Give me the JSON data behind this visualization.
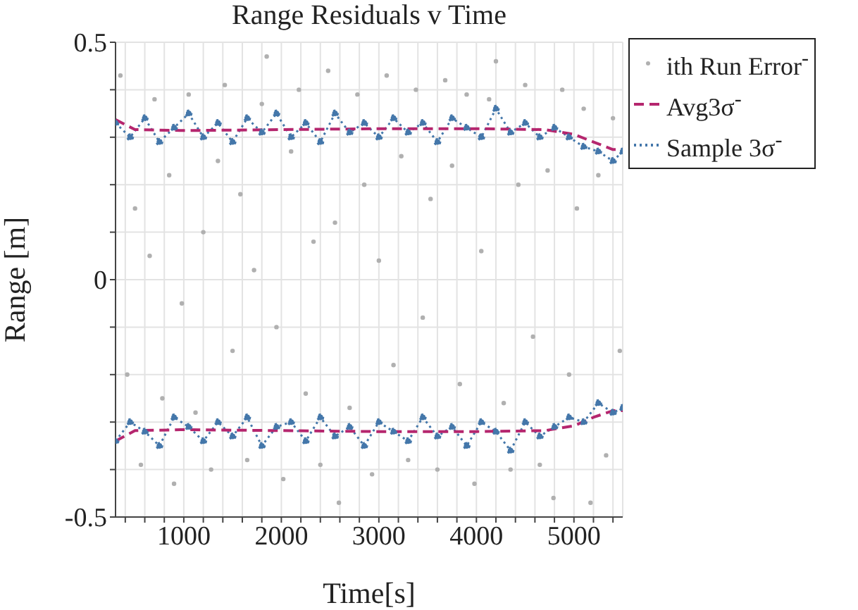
{
  "chart_data": {
    "type": "scatter",
    "title": "Range Residuals v Time",
    "xlabel": "Time[s]",
    "ylabel": "Range [m]",
    "xlim": [
      300,
      5500
    ],
    "ylim": [
      -0.5,
      0.5
    ],
    "xticks": [
      {
        "value": 400,
        "label": null
      },
      {
        "value": 600,
        "label": null
      },
      {
        "value": 800,
        "label": null
      },
      1000,
      {
        "value": 1200,
        "label": null
      },
      {
        "value": 1400,
        "label": null
      },
      {
        "value": 1600,
        "label": null
      },
      {
        "value": 1800,
        "label": null
      },
      2000,
      {
        "value": 2200,
        "label": null
      },
      {
        "value": 2400,
        "label": null
      },
      {
        "value": 2600,
        "label": null
      },
      {
        "value": 2800,
        "label": null
      },
      3000,
      {
        "value": 3200,
        "label": null
      },
      {
        "value": 3400,
        "label": null
      },
      {
        "value": 3600,
        "label": null
      },
      {
        "value": 3800,
        "label": null
      },
      4000,
      {
        "value": 4200,
        "label": null
      },
      {
        "value": 4400,
        "label": null
      },
      {
        "value": 4600,
        "label": null
      },
      {
        "value": 4800,
        "label": null
      },
      5000,
      {
        "value": 5200,
        "label": null
      },
      {
        "value": 5400,
        "label": null
      }
    ],
    "yticks": [
      -0.5,
      {
        "value": -0.4,
        "label": null
      },
      {
        "value": -0.3,
        "label": null
      },
      {
        "value": -0.2,
        "label": null
      },
      {
        "value": -0.1,
        "label": null
      },
      0,
      {
        "value": 0.1,
        "label": null
      },
      {
        "value": 0.2,
        "label": null
      },
      {
        "value": 0.3,
        "label": null
      },
      {
        "value": 0.4,
        "label": null
      },
      0.5
    ],
    "grid": true,
    "legend": "top right",
    "series": [
      {
        "name": "ith Run Error$^{-}$",
        "color": "#b0b0b0",
        "marker": "circle",
        "x": [
          350,
          420,
          500,
          560,
          650,
          700,
          780,
          850,
          900,
          980,
          1050,
          1120,
          1200,
          1280,
          1350,
          1420,
          1500,
          1580,
          1650,
          1720,
          1800,
          1850,
          1950,
          2020,
          2100,
          2180,
          2250,
          2330,
          2400,
          2480,
          2550,
          2590,
          2700,
          2780,
          2850,
          2930,
          3000,
          3080,
          3150,
          3230,
          3300,
          3380,
          3450,
          3530,
          3600,
          3680,
          3750,
          3830,
          3900,
          3980,
          4050,
          4130,
          4200,
          4280,
          4350,
          4430,
          4500,
          4580,
          4650,
          4730,
          4790,
          4880,
          4950,
          5030,
          5100,
          5170,
          5250,
          5330,
          5400,
          5470
        ],
        "values": [
          0.43,
          -0.2,
          0.15,
          -0.39,
          0.05,
          0.38,
          -0.25,
          0.22,
          -0.43,
          -0.05,
          0.39,
          -0.28,
          0.1,
          -0.4,
          0.25,
          0.41,
          -0.15,
          0.18,
          -0.38,
          0.02,
          0.37,
          0.47,
          -0.1,
          -0.42,
          0.27,
          0.4,
          -0.24,
          0.08,
          -0.39,
          0.44,
          0.12,
          -0.47,
          -0.27,
          0.39,
          0.2,
          -0.41,
          0.04,
          0.43,
          -0.18,
          0.26,
          -0.38,
          0.4,
          -0.08,
          0.17,
          -0.4,
          0.42,
          0.24,
          -0.22,
          0.39,
          -0.43,
          0.06,
          0.38,
          0.46,
          -0.26,
          -0.4,
          0.2,
          0.41,
          -0.12,
          -0.39,
          0.23,
          -0.46,
          0.4,
          -0.2,
          0.15,
          0.36,
          -0.47,
          0.22,
          -0.37,
          0.34,
          -0.15
        ]
      },
      {
        "type": "line",
        "name": "Avg3σ$^{-}$",
        "color": "#b5266e",
        "marker": "none",
        "line_style": "dashed",
        "x": [
          300,
          500,
          1000,
          2000,
          3000,
          4000,
          4700,
          5000,
          5200,
          5400,
          5500
        ],
        "values": [
          0.337,
          0.316,
          0.314,
          0.316,
          0.318,
          0.318,
          0.316,
          0.306,
          0.29,
          0.274,
          0.274
        ]
      },
      {
        "type": "line",
        "color": "#b5266e",
        "marker": "none",
        "line_style": "dashed",
        "x": [
          300,
          500,
          1000,
          2000,
          3000,
          4000,
          4700,
          5000,
          5200,
          5400,
          5500
        ],
        "values": [
          -0.34,
          -0.318,
          -0.316,
          -0.318,
          -0.32,
          -0.32,
          -0.318,
          -0.308,
          -0.29,
          -0.276,
          -0.276
        ]
      },
      {
        "type": "line",
        "name": "Sample 3σ$^{-}$",
        "color": "#4477aa",
        "marker": "circle",
        "line_style": "dotted",
        "x": [
          300,
          450,
          600,
          750,
          900,
          1050,
          1200,
          1350,
          1500,
          1650,
          1800,
          1950,
          2100,
          2250,
          2400,
          2550,
          2700,
          2850,
          3000,
          3150,
          3300,
          3450,
          3600,
          3750,
          3900,
          4050,
          4200,
          4350,
          4500,
          4650,
          4800,
          4950,
          5100,
          5250,
          5400,
          5500
        ],
        "values": [
          0.33,
          0.3,
          0.34,
          0.29,
          0.32,
          0.35,
          0.3,
          0.33,
          0.29,
          0.34,
          0.31,
          0.35,
          0.3,
          0.33,
          0.29,
          0.35,
          0.31,
          0.33,
          0.3,
          0.34,
          0.31,
          0.33,
          0.29,
          0.34,
          0.32,
          0.3,
          0.36,
          0.31,
          0.33,
          0.3,
          0.32,
          0.3,
          0.28,
          0.27,
          0.25,
          0.27
        ]
      },
      {
        "type": "line",
        "color": "#4477aa",
        "marker": "circle",
        "line_style": "dotted",
        "x": [
          300,
          450,
          600,
          750,
          900,
          1050,
          1200,
          1350,
          1500,
          1650,
          1800,
          1950,
          2100,
          2250,
          2400,
          2550,
          2700,
          2850,
          3000,
          3150,
          3300,
          3450,
          3600,
          3750,
          3900,
          4050,
          4200,
          4350,
          4500,
          4650,
          4800,
          4950,
          5100,
          5250,
          5400,
          5500
        ],
        "values": [
          -0.34,
          -0.3,
          -0.32,
          -0.35,
          -0.29,
          -0.31,
          -0.34,
          -0.3,
          -0.33,
          -0.29,
          -0.35,
          -0.31,
          -0.3,
          -0.34,
          -0.29,
          -0.33,
          -0.31,
          -0.35,
          -0.3,
          -0.32,
          -0.34,
          -0.29,
          -0.33,
          -0.31,
          -0.35,
          -0.3,
          -0.32,
          -0.36,
          -0.3,
          -0.33,
          -0.31,
          -0.29,
          -0.3,
          -0.26,
          -0.28,
          -0.27
        ]
      }
    ]
  }
}
